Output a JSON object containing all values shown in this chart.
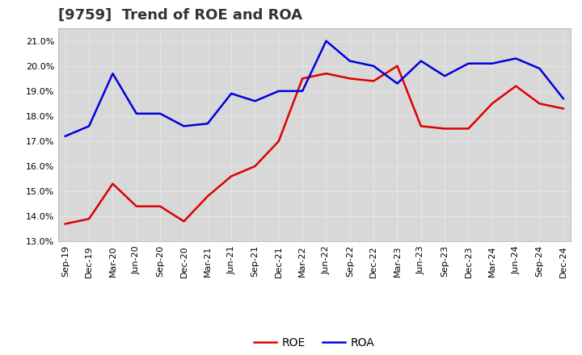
{
  "title": "[9759]  Trend of ROE and ROA",
  "x_labels": [
    "Sep-19",
    "Dec-19",
    "Mar-20",
    "Jun-20",
    "Sep-20",
    "Dec-20",
    "Mar-21",
    "Jun-21",
    "Sep-21",
    "Dec-21",
    "Mar-22",
    "Jun-22",
    "Sep-22",
    "Dec-22",
    "Mar-23",
    "Jun-23",
    "Sep-23",
    "Dec-23",
    "Mar-24",
    "Jun-24",
    "Sep-24",
    "Dec-24"
  ],
  "roe": [
    13.7,
    13.9,
    15.3,
    14.4,
    14.4,
    13.8,
    14.8,
    15.6,
    16.0,
    17.0,
    19.5,
    19.7,
    19.5,
    19.4,
    20.0,
    17.6,
    17.5,
    17.5,
    18.5,
    19.2,
    18.5,
    18.3
  ],
  "roa": [
    17.2,
    17.6,
    19.7,
    18.1,
    18.1,
    17.6,
    17.7,
    18.9,
    18.6,
    19.0,
    19.0,
    21.0,
    20.2,
    20.0,
    19.3,
    20.2,
    19.6,
    20.1,
    20.1,
    20.3,
    19.9,
    18.7
  ],
  "roe_color": "#dd0000",
  "roa_color": "#0000dd",
  "ylim_min": 13.0,
  "ylim_max": 21.5,
  "yticks": [
    13.0,
    14.0,
    15.0,
    16.0,
    17.0,
    18.0,
    19.0,
    20.0,
    21.0
  ],
  "bg_color": "#ffffff",
  "plot_bg_color": "#d8d8d8",
  "grid_color": "#ffffff",
  "title_color": "#333333",
  "title_fontsize": 13,
  "tick_fontsize": 8,
  "legend_fontsize": 10,
  "linewidth": 1.8
}
